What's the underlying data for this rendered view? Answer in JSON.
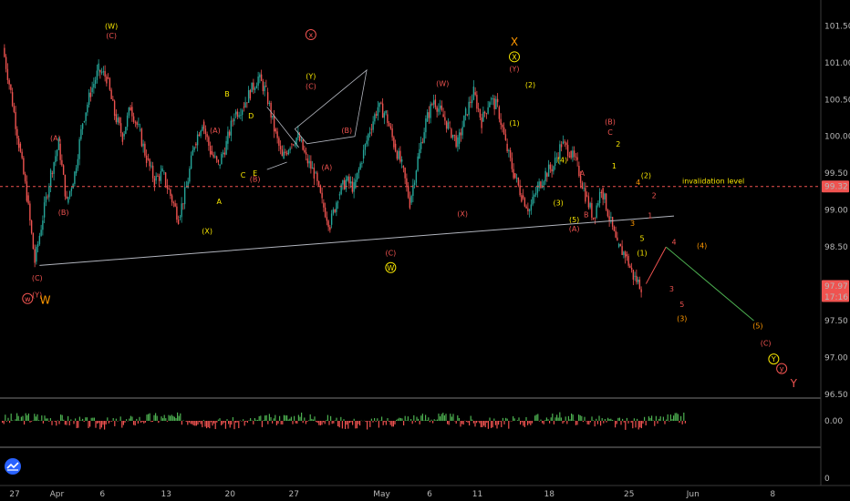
{
  "colors": {
    "background": "#000000",
    "up": "#26a69a",
    "down": "#ef5350",
    "wave_red": "#ef5350",
    "wave_yellow": "#f7e600",
    "wave_orange": "#ff9800",
    "invalidation": "#ef5350",
    "trendline": "#b2b5be",
    "projection_up": "#ef5350",
    "projection_down": "#4caf50",
    "price_tag_red": "#ef5350",
    "osc_green": "#4caf50",
    "osc_red": "#ef5350"
  },
  "chart_data": {
    "type": "candlestick",
    "title": "",
    "xlabel": "",
    "ylabel": "",
    "price_scale": {
      "ticks": [
        "101.50",
        "101.00",
        "100.50",
        "100.00",
        "99.50",
        "99.00",
        "98.50",
        "98.00",
        "97.50",
        "97.00",
        "96.50"
      ],
      "range": [
        96.45,
        101.85
      ]
    },
    "x_ticks": [
      "27",
      "Apr",
      "6",
      "13",
      "20",
      "27",
      "May",
      "6",
      "11",
      "18",
      "25",
      "Jun",
      "8"
    ],
    "oscillator_scale": {
      "ticks": [
        "0.00",
        "0"
      ]
    },
    "invalidation": {
      "value": 99.32,
      "label": "invalidation level",
      "tag": "99.32"
    },
    "last_price": {
      "value": 97.97,
      "tag": "97.97",
      "countdown": "17:16"
    },
    "price_path": [
      {
        "d": 0,
        "v": 101.2
      },
      {
        "d": 1,
        "v": 100.6
      },
      {
        "d": 2,
        "v": 99.9
      },
      {
        "d": 3,
        "v": 99.2
      },
      {
        "d": 4,
        "v": 98.3
      },
      {
        "d": 5,
        "v": 98.9
      },
      {
        "d": 6,
        "v": 99.5
      },
      {
        "d": 7,
        "v": 99.9
      },
      {
        "d": 8,
        "v": 99.1
      },
      {
        "d": 9,
        "v": 99.5
      },
      {
        "d": 10,
        "v": 100.2
      },
      {
        "d": 11,
        "v": 100.6
      },
      {
        "d": 12,
        "v": 100.9
      },
      {
        "d": 13,
        "v": 100.8
      },
      {
        "d": 14,
        "v": 100.3
      },
      {
        "d": 15,
        "v": 100.0
      },
      {
        "d": 16,
        "v": 100.4
      },
      {
        "d": 17,
        "v": 100.1
      },
      {
        "d": 18,
        "v": 99.7
      },
      {
        "d": 19,
        "v": 99.4
      },
      {
        "d": 20,
        "v": 99.5
      },
      {
        "d": 21,
        "v": 99.2
      },
      {
        "d": 22,
        "v": 98.9
      },
      {
        "d": 23,
        "v": 99.3
      },
      {
        "d": 24,
        "v": 99.9
      },
      {
        "d": 25,
        "v": 100.2
      },
      {
        "d": 26,
        "v": 99.8
      },
      {
        "d": 27,
        "v": 99.6
      },
      {
        "d": 28,
        "v": 99.9
      },
      {
        "d": 29,
        "v": 100.3
      },
      {
        "d": 30,
        "v": 100.4
      },
      {
        "d": 31,
        "v": 100.6
      },
      {
        "d": 32,
        "v": 100.8
      },
      {
        "d": 33,
        "v": 100.6
      },
      {
        "d": 34,
        "v": 100.1
      },
      {
        "d": 35,
        "v": 99.7
      },
      {
        "d": 36,
        "v": 99.9
      },
      {
        "d": 37,
        "v": 100.0
      },
      {
        "d": 38,
        "v": 99.7
      },
      {
        "d": 39,
        "v": 99.5
      },
      {
        "d": 40,
        "v": 99.1
      },
      {
        "d": 41,
        "v": 98.8
      },
      {
        "d": 42,
        "v": 99.2
      },
      {
        "d": 43,
        "v": 99.4
      },
      {
        "d": 44,
        "v": 99.3
      },
      {
        "d": 45,
        "v": 99.7
      },
      {
        "d": 46,
        "v": 100.1
      },
      {
        "d": 47,
        "v": 100.4
      },
      {
        "d": 48,
        "v": 100.3
      },
      {
        "d": 49,
        "v": 99.9
      },
      {
        "d": 50,
        "v": 99.6
      },
      {
        "d": 51,
        "v": 99.1
      },
      {
        "d": 52,
        "v": 99.7
      },
      {
        "d": 53,
        "v": 100.2
      },
      {
        "d": 54,
        "v": 100.5
      },
      {
        "d": 55,
        "v": 100.3
      },
      {
        "d": 56,
        "v": 100.1
      },
      {
        "d": 57,
        "v": 99.9
      },
      {
        "d": 58,
        "v": 100.3
      },
      {
        "d": 59,
        "v": 100.6
      },
      {
        "d": 60,
        "v": 100.2
      },
      {
        "d": 61,
        "v": 100.5
      },
      {
        "d": 62,
        "v": 100.4
      },
      {
        "d": 63,
        "v": 99.9
      },
      {
        "d": 64,
        "v": 99.5
      },
      {
        "d": 65,
        "v": 99.2
      },
      {
        "d": 66,
        "v": 99.0
      },
      {
        "d": 67,
        "v": 99.3
      },
      {
        "d": 68,
        "v": 99.5
      },
      {
        "d": 69,
        "v": 99.6
      },
      {
        "d": 70,
        "v": 99.9
      },
      {
        "d": 71,
        "v": 99.8
      },
      {
        "d": 72,
        "v": 99.6
      },
      {
        "d": 73,
        "v": 99.2
      },
      {
        "d": 74,
        "v": 98.9
      },
      {
        "d": 75,
        "v": 99.3
      },
      {
        "d": 76,
        "v": 98.9
      },
      {
        "d": 77,
        "v": 98.5
      },
      {
        "d": 78,
        "v": 98.4
      },
      {
        "d": 79,
        "v": 98.1
      },
      {
        "d": 80,
        "v": 97.97
      }
    ],
    "trendline": [
      {
        "d": 4.5,
        "v": 98.25
      },
      {
        "d": 84,
        "v": 98.92
      }
    ],
    "projection": [
      {
        "d": 80.5,
        "v": 98.0
      },
      {
        "d": 83,
        "v": 98.5
      },
      {
        "d": 94,
        "v": 97.5
      }
    ],
    "wedge": [
      {
        "d": 36.5,
        "v": 100.1
      },
      {
        "d": 45.5,
        "v": 100.9
      },
      {
        "d": 44,
        "v": 100.0
      },
      {
        "d": 38,
        "v": 99.9
      }
    ],
    "triangle": [
      {
        "d": 33,
        "v": 100.4
      },
      {
        "d": 37,
        "v": 99.85
      },
      {
        "d": 33,
        "v": 99.55
      },
      {
        "d": 35.5,
        "v": 99.65
      }
    ],
    "wave_labels": [
      {
        "t": "(W)",
        "d": 13.5,
        "v": 101.5,
        "c": "wave_yellow"
      },
      {
        "t": "(C)",
        "d": 13.5,
        "v": 101.37,
        "c": "wave_red"
      },
      {
        "t": "(A)",
        "d": 6.5,
        "v": 99.98,
        "c": "wave_red"
      },
      {
        "t": "(B)",
        "d": 7.5,
        "v": 98.97,
        "c": "wave_red"
      },
      {
        "t": "(C)",
        "d": 4.2,
        "v": 98.08,
        "c": "wave_red"
      },
      {
        "t": "(Y)",
        "d": 4.2,
        "v": 97.85,
        "c": "wave_red"
      },
      {
        "t": "(A)",
        "d": 26.5,
        "v": 100.08,
        "c": "wave_red"
      },
      {
        "t": "B",
        "d": 28,
        "v": 100.58,
        "c": "wave_yellow"
      },
      {
        "t": "D",
        "d": 31,
        "v": 100.28,
        "c": "wave_yellow"
      },
      {
        "t": "C",
        "d": 30,
        "v": 99.48,
        "c": "wave_yellow"
      },
      {
        "t": "E",
        "d": 31.5,
        "v": 99.5,
        "c": "wave_yellow"
      },
      {
        "t": "(B)",
        "d": 31.5,
        "v": 99.42,
        "c": "wave_red"
      },
      {
        "t": "A",
        "d": 27,
        "v": 99.12,
        "c": "wave_yellow"
      },
      {
        "t": "(X)",
        "d": 25.5,
        "v": 98.72,
        "c": "wave_yellow"
      },
      {
        "t": "(Y)",
        "d": 38.5,
        "v": 100.82,
        "c": "wave_yellow"
      },
      {
        "t": "(C)",
        "d": 38.5,
        "v": 100.68,
        "c": "wave_red"
      },
      {
        "t": "(B)",
        "d": 43,
        "v": 100.08,
        "c": "wave_red"
      },
      {
        "t": "(A)",
        "d": 40.5,
        "v": 99.58,
        "c": "wave_red"
      },
      {
        "t": "(C)",
        "d": 48.5,
        "v": 98.42,
        "c": "wave_red"
      },
      {
        "t": "(W)",
        "d": 55,
        "v": 100.72,
        "c": "wave_red"
      },
      {
        "t": "(X)",
        "d": 57.5,
        "v": 98.95,
        "c": "wave_red"
      },
      {
        "t": "(Y)",
        "d": 64,
        "v": 100.92,
        "c": "wave_red"
      },
      {
        "t": "(1)",
        "d": 64,
        "v": 100.18,
        "c": "wave_yellow"
      },
      {
        "t": "(2)",
        "d": 66,
        "v": 100.7,
        "c": "wave_yellow"
      },
      {
        "t": "(4)",
        "d": 70,
        "v": 99.68,
        "c": "wave_yellow"
      },
      {
        "t": "(3)",
        "d": 69.5,
        "v": 99.1,
        "c": "wave_yellow"
      },
      {
        "t": "A",
        "d": 72.5,
        "v": 99.5,
        "c": "wave_red"
      },
      {
        "t": "(5)",
        "d": 71.5,
        "v": 98.87,
        "c": "wave_yellow"
      },
      {
        "t": "(A)",
        "d": 71.5,
        "v": 98.75,
        "c": "wave_red"
      },
      {
        "t": "B",
        "d": 73,
        "v": 98.94,
        "c": "wave_red"
      },
      {
        "t": "(B)",
        "d": 76,
        "v": 100.2,
        "c": "wave_red"
      },
      {
        "t": "C",
        "d": 76,
        "v": 100.06,
        "c": "wave_red"
      },
      {
        "t": "2",
        "d": 77,
        "v": 99.9,
        "c": "wave_yellow"
      },
      {
        "t": "1",
        "d": 76.5,
        "v": 99.6,
        "c": "wave_yellow"
      },
      {
        "t": "4",
        "d": 79.5,
        "v": 99.38,
        "c": "wave_orange"
      },
      {
        "t": "(2)",
        "d": 80.5,
        "v": 99.47,
        "c": "wave_yellow"
      },
      {
        "t": "2",
        "d": 81.5,
        "v": 99.2,
        "c": "wave_red"
      },
      {
        "t": "1",
        "d": 81,
        "v": 98.93,
        "c": "wave_red"
      },
      {
        "t": "3",
        "d": 78.8,
        "v": 98.82,
        "c": "wave_orange"
      },
      {
        "t": "5",
        "d": 80,
        "v": 98.62,
        "c": "wave_yellow"
      },
      {
        "t": "(1)",
        "d": 80,
        "v": 98.42,
        "c": "wave_yellow"
      },
      {
        "t": "4",
        "d": 84,
        "v": 98.57,
        "c": "wave_red"
      },
      {
        "t": "3",
        "d": 83.7,
        "v": 97.93,
        "c": "wave_red"
      },
      {
        "t": "5",
        "d": 85,
        "v": 97.72,
        "c": "wave_red"
      },
      {
        "t": "(3)",
        "d": 85,
        "v": 97.53,
        "c": "wave_orange"
      },
      {
        "t": "(4)",
        "d": 87.5,
        "v": 98.52,
        "c": "wave_orange"
      },
      {
        "t": "(5)",
        "d": 94.5,
        "v": 97.43,
        "c": "wave_orange"
      },
      {
        "t": "(C)",
        "d": 95.5,
        "v": 97.2,
        "c": "wave_red"
      }
    ],
    "circled_labels": [
      {
        "t": "w",
        "d": 3,
        "v": 97.8,
        "c": "wave_red"
      },
      {
        "t": "x",
        "d": 38.5,
        "v": 101.38,
        "c": "wave_red"
      },
      {
        "t": "X",
        "d": 64,
        "v": 101.08,
        "c": "wave_yellow"
      },
      {
        "t": "W",
        "d": 48.5,
        "v": 98.22,
        "c": "wave_yellow"
      },
      {
        "t": "Y",
        "d": 96.5,
        "v": 96.98,
        "c": "wave_yellow"
      },
      {
        "t": "y",
        "d": 97.5,
        "v": 96.85,
        "c": "wave_red"
      }
    ],
    "big_labels": [
      {
        "t": "W",
        "d": 5.2,
        "v": 97.78,
        "c": "wave_orange"
      },
      {
        "t": "X",
        "d": 64,
        "v": 101.28,
        "c": "wave_orange"
      },
      {
        "t": "Y",
        "d": 99,
        "v": 96.65,
        "c": "wave_red"
      }
    ]
  }
}
